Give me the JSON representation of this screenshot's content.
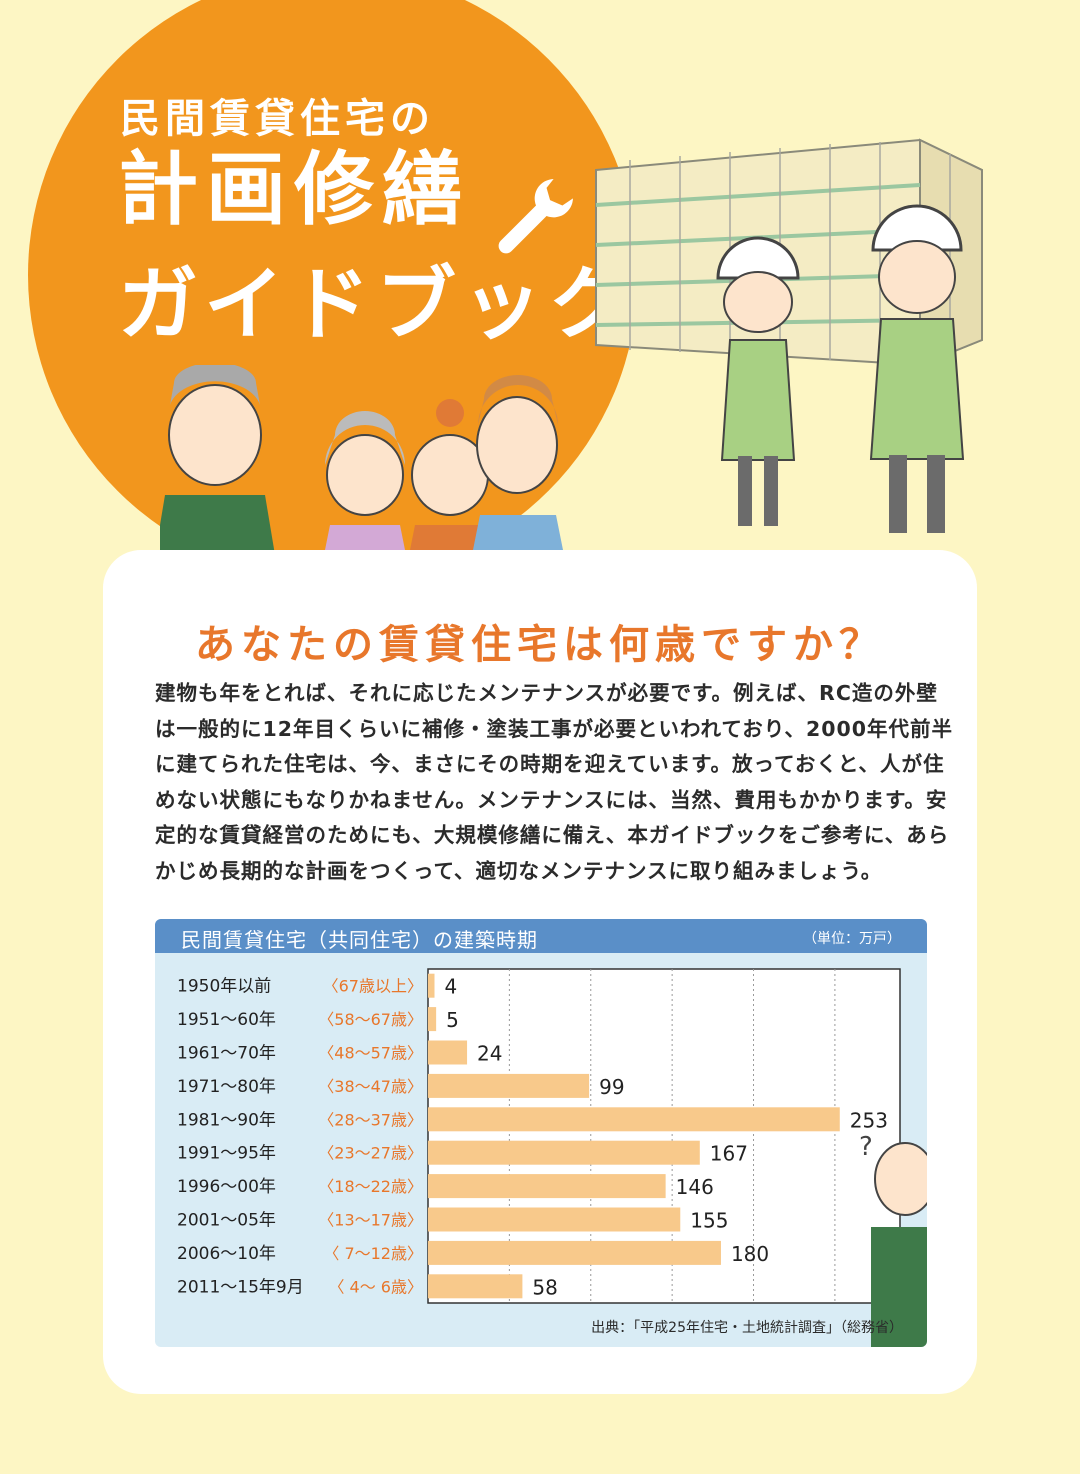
{
  "hero": {
    "title_small": "民間賃貸住宅の",
    "title_large": "計画修繕",
    "title_large2": "ガイドブック"
  },
  "card": {
    "heading": "あなたの賃貸住宅は何歳ですか？",
    "body": "建物も年をとれば、それに応じたメンテナンスが必要です。例えば、RC造の外壁は一般的に12年目くらいに補修・塗装工事が必要といわれており、2000年代前半に建てられた住宅は、今、まさにその時期を迎えています。放っておくと、人が住めない状態にもなりかねません。メンテナンスには、当然、費用もかかります。安定的な賃貸経営のためにも、大規模修繕に備え、本ガイドブックをご参考に、あらかじめ長期的な計画をつくって、適切なメンテナンスに取り組みましょう。"
  },
  "chart": {
    "title": "民間賃貸住宅（共同住宅）の建築時期",
    "unit": "（単位：万戸）",
    "source": "出典：「平成25年住宅・土地統計調査」（総務省）"
  },
  "chart_data": {
    "type": "bar",
    "orientation": "horizontal",
    "title": "民間賃貸住宅（共同住宅）の建築時期",
    "unit": "（単位：万戸）",
    "categories": [
      "1950年以前",
      "1951〜60年",
      "1961〜70年",
      "1971〜80年",
      "1981〜90年",
      "1991〜95年",
      "1996〜00年",
      "2001〜05年",
      "2006〜10年",
      "2011〜15年9月"
    ],
    "age_labels": [
      "〈67歳以上〉",
      "〈58〜67歳〉",
      "〈48〜57歳〉",
      "〈38〜47歳〉",
      "〈28〜37歳〉",
      "〈23〜27歳〉",
      "〈18〜22歳〉",
      "〈13〜17歳〉",
      "〈 7〜12歳〉",
      "〈 4〜 6歳〉"
    ],
    "values": [
      4,
      5,
      24,
      99,
      253,
      167,
      146,
      155,
      180,
      58
    ],
    "xlim": [
      0,
      290
    ],
    "grid": true,
    "colors": {
      "bar": "#f8c98b",
      "age_label": "#e8772b",
      "header": "#5a8fc8",
      "panel": "#d9ecf5"
    }
  },
  "colors": {
    "background": "#fdf6c4",
    "accent": "#f2961d",
    "heading": "#e8772b"
  }
}
